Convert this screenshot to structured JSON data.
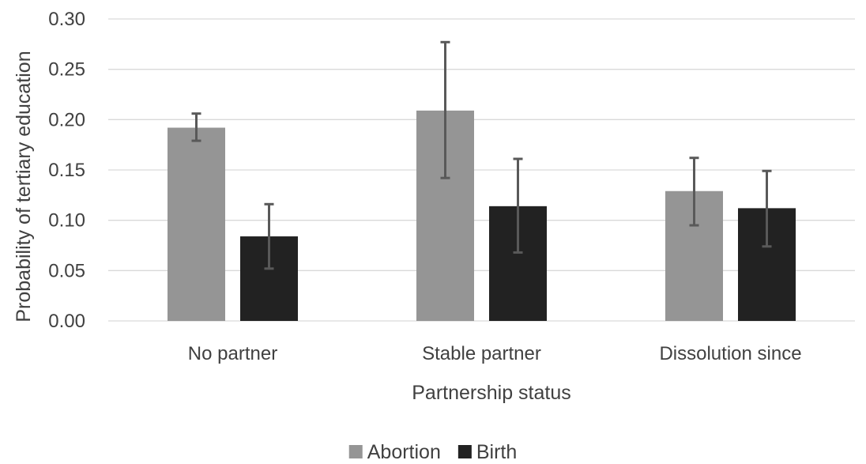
{
  "chart_data": {
    "type": "bar",
    "title": "",
    "xlabel": "Partnership status",
    "ylabel": "Probability of tertiary education",
    "categories": [
      "No partner",
      "Stable partner",
      "Dissolution since"
    ],
    "ylim": [
      0,
      0.3
    ],
    "yticks": [
      "0.00",
      "0.05",
      "0.10",
      "0.15",
      "0.20",
      "0.25",
      "0.30"
    ],
    "grid": true,
    "legend_position": "bottom",
    "series": [
      {
        "name": "Abortion",
        "color": "#959595",
        "values": [
          0.192,
          0.209,
          0.129
        ],
        "error_low": [
          0.179,
          0.142,
          0.095
        ],
        "error_high": [
          0.206,
          0.277,
          0.162
        ]
      },
      {
        "name": "Birth",
        "color": "#222222",
        "values": [
          0.084,
          0.114,
          0.112
        ],
        "error_low": [
          0.052,
          0.068,
          0.074
        ],
        "error_high": [
          0.116,
          0.161,
          0.149
        ]
      }
    ]
  }
}
